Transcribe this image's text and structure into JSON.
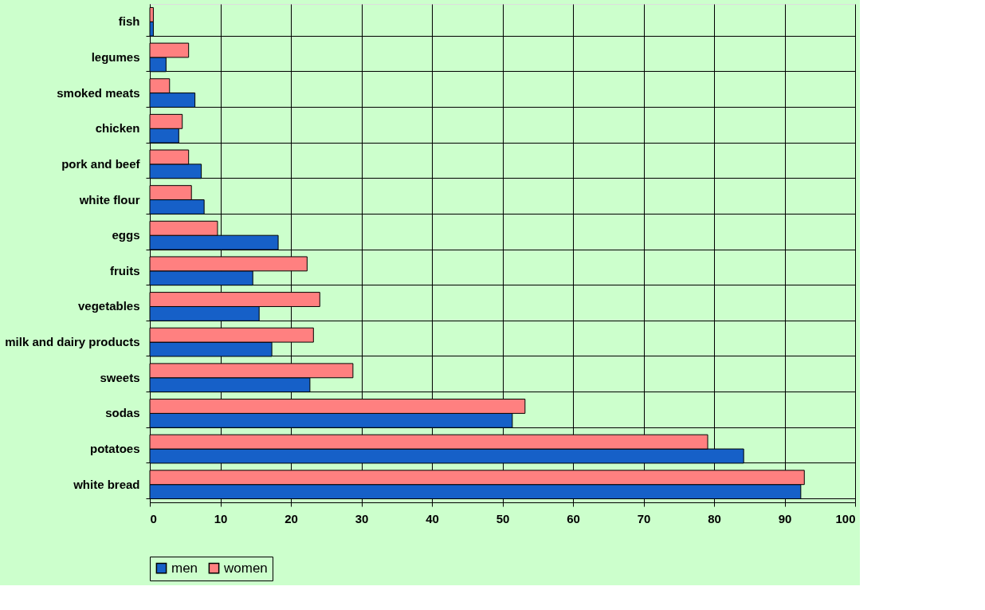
{
  "chart_data": {
    "type": "bar",
    "orientation": "horizontal",
    "categories": [
      "fish",
      "legumes",
      "smoked meats",
      "chicken",
      "pork and beef",
      "white flour",
      "eggs",
      "fruits",
      "vegetables",
      "milk and dairy products",
      "sweets",
      "sodas",
      "potatoes",
      "white bread"
    ],
    "series": [
      {
        "name": "men",
        "color": "#1660c8",
        "values": [
          0.5,
          2.3,
          6.4,
          4.1,
          7.3,
          7.7,
          18.2,
          14.6,
          15.5,
          17.3,
          22.7,
          51.4,
          84.2,
          92.3
        ]
      },
      {
        "name": "women",
        "color": "#ff8080",
        "values": [
          0.5,
          5.5,
          2.8,
          4.6,
          5.5,
          5.9,
          9.6,
          22.3,
          24.1,
          23.2,
          28.8,
          53.2,
          79.1,
          92.8
        ]
      }
    ],
    "xlim": [
      0,
      100
    ],
    "xticks": [
      0,
      10,
      20,
      30,
      40,
      50,
      60,
      70,
      80,
      90,
      100
    ],
    "grid": true,
    "legend": "bottom"
  }
}
